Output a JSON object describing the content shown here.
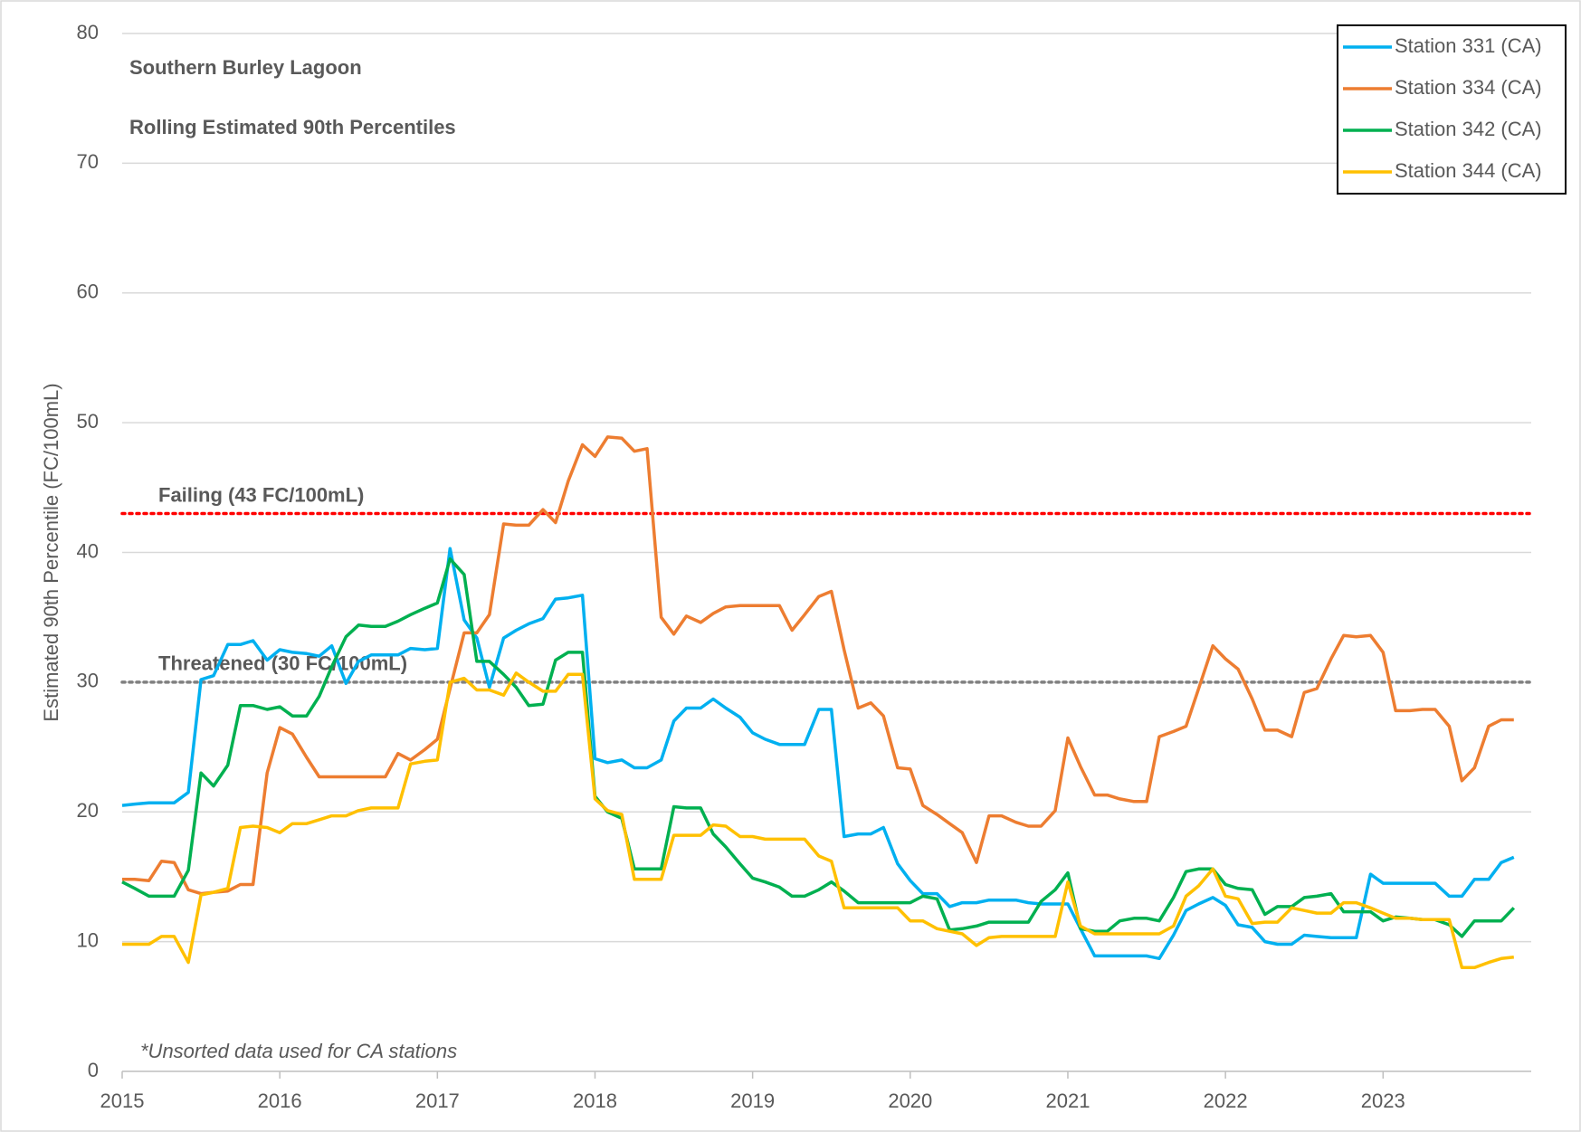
{
  "chart_data": {
    "type": "line",
    "title_lines": [
      "Southern Burley Lagoon",
      "Rolling Estimated 90th Percentiles"
    ],
    "y_label": "Estimated 90th Percentile (FC/100mL)",
    "annotation": "*Unsorted data used for CA stations",
    "xlim": [
      2015,
      2023.94
    ],
    "xticks": [
      2015,
      2016,
      2017,
      2018,
      2019,
      2020,
      2021,
      2022,
      2023
    ],
    "ylim": [
      0,
      80
    ],
    "yticks": [
      0,
      10,
      20,
      30,
      40,
      50,
      60,
      70,
      80
    ],
    "grid": true,
    "legend": "top-right",
    "reference_lines": [
      {
        "value": 43,
        "label": "Failing (43 FC/100mL)",
        "color": "#ff0000"
      },
      {
        "value": 30,
        "label": "Threatened (30 FC/100mL)",
        "color": "#808080"
      }
    ],
    "x": [
      2015,
      2015.08,
      2015.17,
      2015.25,
      2015.33,
      2015.42,
      2015.5,
      2015.58,
      2015.67,
      2015.75,
      2015.83,
      2015.92,
      2016,
      2016.08,
      2016.17,
      2016.25,
      2016.33,
      2016.42,
      2016.5,
      2016.58,
      2016.67,
      2016.75,
      2016.83,
      2016.92,
      2017,
      2017.08,
      2017.17,
      2017.25,
      2017.33,
      2017.42,
      2017.5,
      2017.58,
      2017.67,
      2017.75,
      2017.83,
      2017.92,
      2018,
      2018.08,
      2018.17,
      2018.25,
      2018.33,
      2018.42,
      2018.5,
      2018.58,
      2018.67,
      2018.75,
      2018.83,
      2018.92,
      2019,
      2019.08,
      2019.17,
      2019.25,
      2019.33,
      2019.42,
      2019.5,
      2019.58,
      2019.67,
      2019.75,
      2019.83,
      2019.92,
      2020,
      2020.08,
      2020.17,
      2020.25,
      2020.33,
      2020.42,
      2020.5,
      2020.58,
      2020.67,
      2020.75,
      2020.83,
      2020.92,
      2021,
      2021.08,
      2021.17,
      2021.25,
      2021.33,
      2021.42,
      2021.5,
      2021.58,
      2021.67,
      2021.75,
      2021.83,
      2021.92,
      2022,
      2022.08,
      2022.17,
      2022.25,
      2022.33,
      2022.42,
      2022.5,
      2022.58,
      2022.67,
      2022.75,
      2022.83,
      2022.92,
      2023,
      2023.08,
      2023.17,
      2023.25,
      2023.33,
      2023.42,
      2023.5,
      2023.58,
      2023.67,
      2023.75,
      2023.83
    ],
    "series": [
      {
        "name": "Station 331 (CA)",
        "color": "#00b0f0",
        "values": [
          20.5,
          20.6,
          20.7,
          20.7,
          20.7,
          21.5,
          30.2,
          30.5,
          32.9,
          32.9,
          33.2,
          31.7,
          32.5,
          32.3,
          32.2,
          32.0,
          32.8,
          29.9,
          31.6,
          32.1,
          32.1,
          32.1,
          32.6,
          32.5,
          32.6,
          40.3,
          34.8,
          33.4,
          29.6,
          33.4,
          34.0,
          34.5,
          34.9,
          36.4,
          36.5,
          36.7,
          24.1,
          23.8,
          24.0,
          23.4,
          23.4,
          24.0,
          27.0,
          28.0,
          28.0,
          28.7,
          28.0,
          27.3,
          26.1,
          25.6,
          25.2,
          25.2,
          25.2,
          27.9,
          27.9,
          18.1,
          18.3,
          18.3,
          18.8,
          16.0,
          14.7,
          13.7,
          13.7,
          12.7,
          13.0,
          13.0,
          13.2,
          13.2,
          13.2,
          13.0,
          12.9,
          12.9,
          12.9,
          11.0,
          8.9,
          8.9,
          8.9,
          8.9,
          8.9,
          8.7,
          10.5,
          12.4,
          12.9,
          13.4,
          12.8,
          11.3,
          11.1,
          10.0,
          9.8,
          9.8,
          10.5,
          10.4,
          10.3,
          10.3,
          10.3,
          15.2,
          14.5,
          14.5,
          14.5,
          14.5,
          14.5,
          13.5,
          13.5,
          14.8,
          14.8,
          16.1,
          16.5
        ]
      },
      {
        "name": "Station 334 (CA)",
        "color": "#ed7d31",
        "values": [
          14.8,
          14.8,
          14.7,
          16.2,
          16.1,
          14.0,
          13.7,
          13.8,
          13.9,
          14.4,
          14.4,
          23.0,
          26.5,
          26.0,
          24.2,
          22.7,
          22.7,
          22.7,
          22.7,
          22.7,
          22.7,
          24.5,
          24.0,
          24.8,
          25.6,
          29.5,
          33.8,
          33.8,
          35.2,
          42.2,
          42.1,
          42.1,
          43.3,
          42.3,
          45.5,
          48.3,
          47.4,
          48.9,
          48.8,
          47.8,
          48.0,
          35.0,
          33.7,
          35.1,
          34.6,
          35.3,
          35.8,
          35.9,
          35.9,
          35.9,
          35.9,
          34.0,
          35.2,
          36.6,
          37.0,
          32.5,
          28.0,
          28.4,
          27.4,
          23.4,
          23.3,
          20.5,
          19.8,
          19.1,
          18.4,
          16.1,
          19.7,
          19.7,
          19.2,
          18.9,
          18.9,
          20.1,
          25.7,
          23.5,
          21.3,
          21.3,
          21.0,
          20.8,
          20.8,
          25.8,
          26.2,
          26.6,
          29.5,
          32.8,
          31.8,
          31.0,
          28.7,
          26.3,
          26.3,
          25.8,
          29.2,
          29.5,
          31.8,
          33.6,
          33.5,
          33.6,
          32.3,
          27.8,
          27.8,
          27.9,
          27.9,
          26.6,
          22.4,
          23.4,
          26.6,
          27.1,
          27.1
        ]
      },
      {
        "name": "Station 342 (CA)",
        "color": "#00b050",
        "values": [
          14.6,
          14.1,
          13.5,
          13.5,
          13.5,
          15.5,
          23.0,
          22.0,
          23.6,
          28.2,
          28.2,
          27.9,
          28.1,
          27.4,
          27.4,
          28.9,
          31.2,
          33.5,
          34.4,
          34.3,
          34.3,
          34.7,
          35.2,
          35.7,
          36.1,
          39.5,
          38.3,
          31.6,
          31.6,
          30.6,
          29.6,
          28.2,
          28.3,
          31.7,
          32.3,
          32.3,
          21.2,
          20.0,
          19.5,
          15.6,
          15.6,
          15.6,
          20.4,
          20.3,
          20.3,
          18.3,
          17.3,
          16.0,
          14.9,
          14.6,
          14.2,
          13.5,
          13.5,
          14.0,
          14.6,
          13.9,
          13.0,
          13.0,
          13.0,
          13.0,
          13.0,
          13.5,
          13.3,
          10.9,
          11.0,
          11.2,
          11.5,
          11.5,
          11.5,
          11.5,
          13.1,
          14.0,
          15.3,
          11.0,
          10.8,
          10.8,
          11.6,
          11.8,
          11.8,
          11.6,
          13.4,
          15.4,
          15.6,
          15.6,
          14.4,
          14.1,
          14.0,
          12.1,
          12.7,
          12.7,
          13.4,
          13.5,
          13.7,
          12.3,
          12.3,
          12.3,
          11.6,
          11.9,
          11.8,
          11.7,
          11.7,
          11.3,
          10.4,
          11.6,
          11.6,
          11.6,
          12.6
        ]
      },
      {
        "name": "Station 344 (CA)",
        "color": "#ffc000",
        "values": [
          9.8,
          9.8,
          9.8,
          10.4,
          10.4,
          8.4,
          13.6,
          13.8,
          14.1,
          18.8,
          18.9,
          18.8,
          18.4,
          19.1,
          19.1,
          19.4,
          19.7,
          19.7,
          20.1,
          20.3,
          20.3,
          20.3,
          23.7,
          23.9,
          24.0,
          30.0,
          30.3,
          29.4,
          29.4,
          29.0,
          30.7,
          30.0,
          29.3,
          29.3,
          30.6,
          30.6,
          21.0,
          20.1,
          19.8,
          14.8,
          14.8,
          14.8,
          18.2,
          18.2,
          18.2,
          19.0,
          18.9,
          18.1,
          18.1,
          17.9,
          17.9,
          17.9,
          17.9,
          16.6,
          16.2,
          12.6,
          12.6,
          12.6,
          12.6,
          12.6,
          11.6,
          11.6,
          11.0,
          10.8,
          10.6,
          9.7,
          10.3,
          10.4,
          10.4,
          10.4,
          10.4,
          10.4,
          14.6,
          11.2,
          10.6,
          10.6,
          10.6,
          10.6,
          10.6,
          10.6,
          11.2,
          13.5,
          14.3,
          15.6,
          13.5,
          13.3,
          11.4,
          11.5,
          11.5,
          12.6,
          12.4,
          12.2,
          12.2,
          13.0,
          13.0,
          12.6,
          12.2,
          11.8,
          11.8,
          11.7,
          11.7,
          11.7,
          8.0,
          8.0,
          8.4,
          8.7,
          8.8
        ]
      }
    ]
  }
}
